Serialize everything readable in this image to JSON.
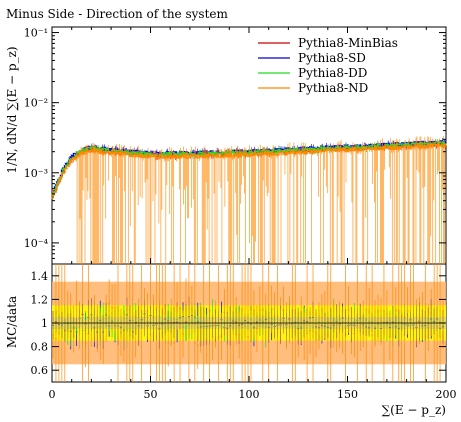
{
  "chart_data": {
    "type": "line",
    "title": "Minus Side - Direction of the system",
    "xlabel": "∑(E − p_z)",
    "ylabel": "1/N, dN/d ∑(E − p_z)",
    "ratio_ylabel": "MC/data",
    "xlim": [
      0,
      200
    ],
    "ylim": [
      5e-05,
      0.12
    ],
    "yscale": "log",
    "ratio_ylim": [
      0.5,
      1.5
    ],
    "x_ticks": [
      "0",
      "50",
      "100",
      "150",
      "200"
    ],
    "y_ticks": [
      "10⁻⁴",
      "10⁻³",
      "10⁻²",
      "10⁻¹"
    ],
    "y_tick_values": [
      0.0001,
      0.001,
      0.01,
      0.1
    ],
    "ratio_ticks": [
      "0.6",
      "0.8",
      "1",
      "1.2",
      "1.4"
    ],
    "ratio_tick_values": [
      0.6,
      0.8,
      1.0,
      1.2,
      1.4
    ],
    "legend_position": "top-right",
    "data_reference": {
      "x": [
        0,
        2,
        4,
        6,
        8,
        10,
        15,
        20,
        30,
        50,
        70,
        100,
        130,
        160,
        200
      ],
      "y": [
        0.00045,
        0.0006,
        0.0008,
        0.0011,
        0.0013,
        0.0016,
        0.002,
        0.0022,
        0.002,
        0.0018,
        0.0018,
        0.0019,
        0.0021,
        0.0023,
        0.0026
      ]
    },
    "series": [
      {
        "name": "Pythia8-MinBias",
        "color": "#cc0000",
        "scale": 1.0,
        "ratio_band_halfwidth": 0.05,
        "ratio_noise": 0.06
      },
      {
        "name": "Pythia8-SD",
        "color": "#0000dd",
        "scale": 1.06,
        "ratio_band_halfwidth": 0.05,
        "ratio_noise": 0.12
      },
      {
        "name": "Pythia8-DD",
        "color": "#22dd22",
        "scale": 1.02,
        "ratio_band_halfwidth": 0.15,
        "ratio_noise": 0.1
      },
      {
        "name": "Pythia8-ND",
        "color": "#ff8800",
        "scale": 0.95,
        "ratio_band_halfwidth": 0.35,
        "ratio_noise": 0.3
      }
    ]
  }
}
